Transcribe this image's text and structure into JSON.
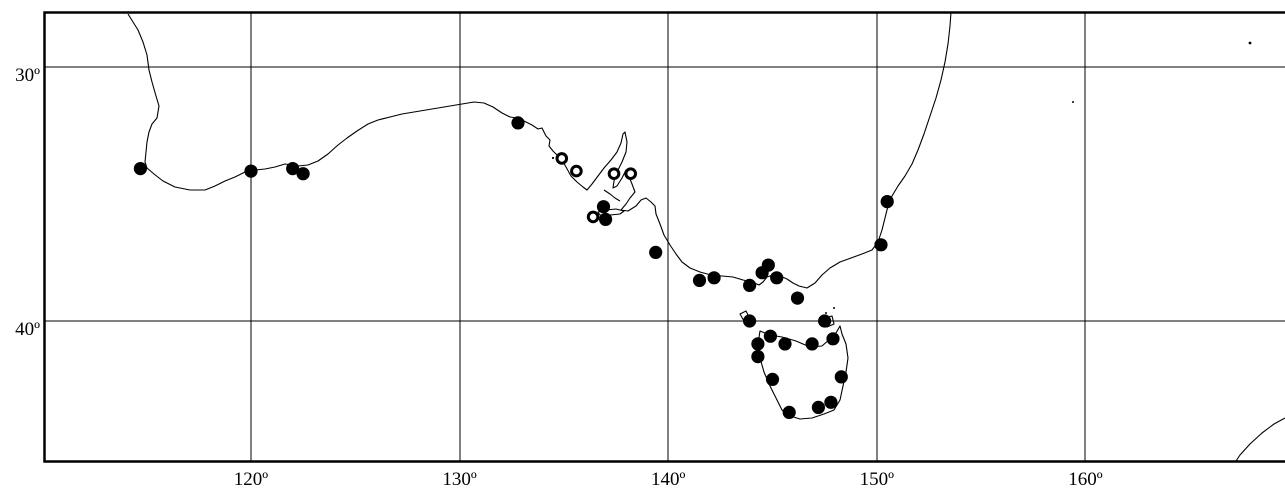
{
  "map": {
    "x_axis": {
      "ticks": [
        {
          "value": 120,
          "label": "120º"
        },
        {
          "value": 130,
          "label": "130º"
        },
        {
          "value": 140,
          "label": "140º"
        },
        {
          "value": 150,
          "label": "150º"
        },
        {
          "value": 160,
          "label": "160º"
        }
      ]
    },
    "y_axis": {
      "ticks": [
        {
          "value": -30,
          "label": "30º"
        },
        {
          "value": -40,
          "label": "40º"
        }
      ]
    },
    "line_color": "#000000",
    "marker_legend": {
      "filled": "record (filled circle)",
      "open": "record (open circle)"
    },
    "records": {
      "filled": [
        [
          114.7,
          -34.0
        ],
        [
          120.0,
          -34.1
        ],
        [
          122.0,
          -34.0
        ],
        [
          122.5,
          -34.2
        ],
        [
          132.8,
          -32.2
        ],
        [
          136.9,
          -35.5
        ],
        [
          137.0,
          -36.0
        ],
        [
          139.4,
          -37.3
        ],
        [
          141.5,
          -38.4
        ],
        [
          142.2,
          -38.3
        ],
        [
          143.9,
          -38.6
        ],
        [
          144.5,
          -38.1
        ],
        [
          144.8,
          -37.8
        ],
        [
          145.2,
          -38.3
        ],
        [
          146.2,
          -39.1
        ],
        [
          150.2,
          -37.0
        ],
        [
          150.5,
          -35.3
        ],
        [
          143.9,
          -40.0
        ],
        [
          144.3,
          -40.9
        ],
        [
          144.3,
          -41.4
        ],
        [
          144.9,
          -40.6
        ],
        [
          145.6,
          -40.9
        ],
        [
          146.9,
          -40.9
        ],
        [
          147.5,
          -40.0
        ],
        [
          147.9,
          -40.7
        ],
        [
          145.0,
          -42.3
        ],
        [
          148.3,
          -42.2
        ],
        [
          145.8,
          -43.6
        ],
        [
          147.2,
          -43.4
        ],
        [
          147.8,
          -43.2
        ]
      ],
      "open": [
        [
          134.9,
          -33.6
        ],
        [
          135.6,
          -34.1
        ],
        [
          137.4,
          -34.2
        ],
        [
          138.2,
          -34.2
        ],
        [
          136.4,
          -35.9
        ]
      ]
    }
  }
}
